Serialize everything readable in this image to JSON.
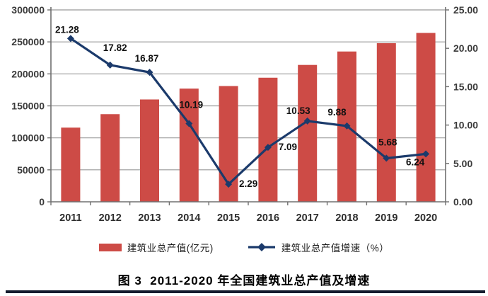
{
  "caption": "图 3  2011-2020 年全国建筑业总产值及增速",
  "colors": {
    "bar": "#cd4b46",
    "line": "#1b3a6b",
    "grid": "#999999",
    "axis": "#707070",
    "tick_text": "#3a3a3a",
    "data_label": "#111111",
    "rule": "#141c2e"
  },
  "legend": {
    "bar_label": "建筑业总产值(亿元)",
    "line_label": "建筑业总产值增速（%）"
  },
  "chart_data": {
    "type": "bar",
    "subtype": "bar+line combo, dual axis",
    "title": "图 3  2011-2020 年全国建筑业总产值及增速",
    "categories": [
      "2011",
      "2012",
      "2013",
      "2014",
      "2015",
      "2016",
      "2017",
      "2018",
      "2019",
      "2020"
    ],
    "series": [
      {
        "name": "建筑业总产值(亿元)",
        "type": "bar",
        "axis": "left",
        "color": "#cd4b46",
        "values": [
          116000,
          137000,
          160000,
          177000,
          181000,
          194000,
          214000,
          235000,
          248000,
          264000
        ]
      },
      {
        "name": "建筑业总产值增速（%）",
        "type": "line",
        "axis": "right",
        "color": "#1b3a6b",
        "values": [
          21.28,
          17.82,
          16.87,
          10.19,
          2.29,
          7.09,
          10.53,
          9.88,
          5.68,
          6.24
        ],
        "labels": [
          "21.28",
          "17.82",
          "16.87",
          "10.19",
          "2.29",
          "7.09",
          "10.53",
          "9.88",
          "5.68",
          "6.24"
        ]
      }
    ],
    "left_axis": {
      "min": 0,
      "max": 300000,
      "step": 50000,
      "ticks": [
        "300000",
        "250000",
        "200000",
        "150000",
        "100000",
        "50000",
        "0"
      ]
    },
    "right_axis": {
      "min": 0,
      "max": 25,
      "step": 5,
      "ticks": [
        "25.00",
        "20.00",
        "15.00",
        "10.00",
        "5.00",
        "0.00"
      ]
    },
    "grid": true,
    "legend_position": "bottom",
    "xlabel": "",
    "ylabel": ""
  }
}
